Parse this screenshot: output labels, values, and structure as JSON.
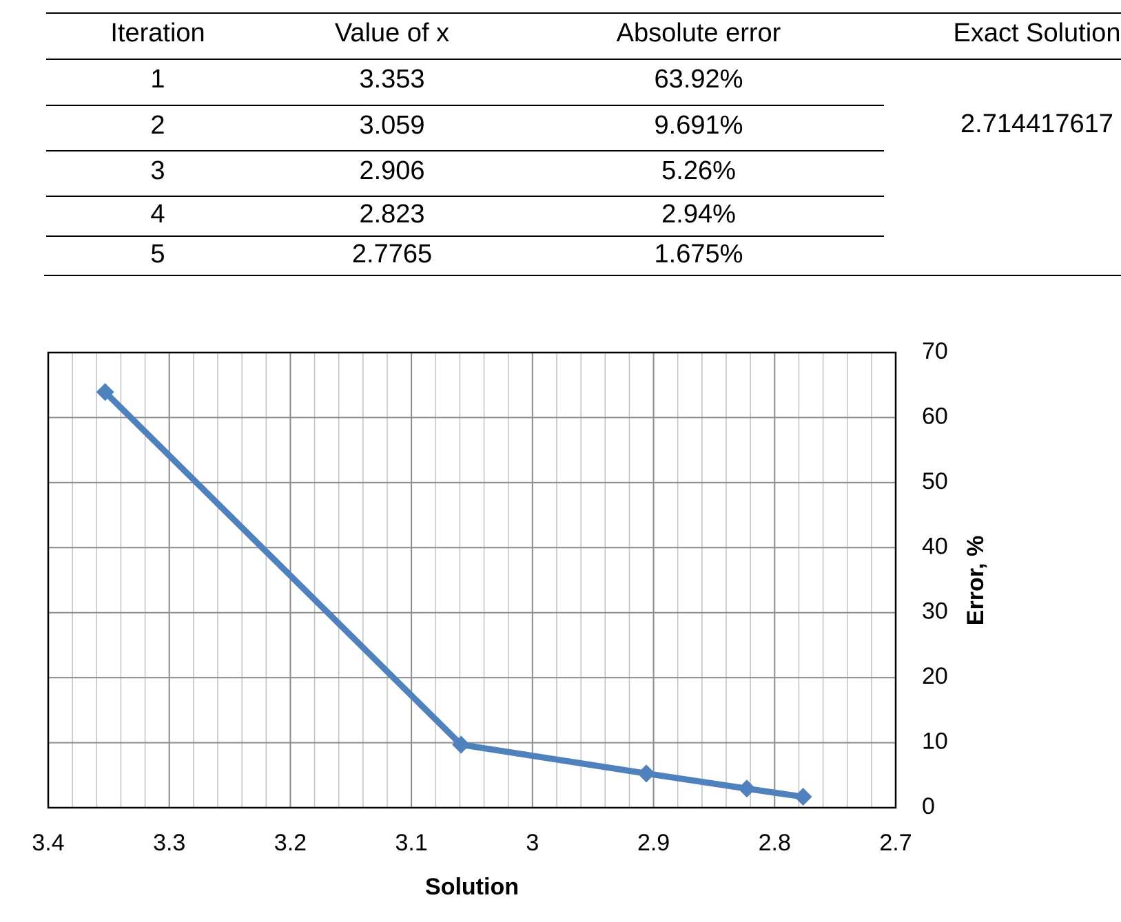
{
  "table": {
    "header": [
      "Iteration",
      "Value of x",
      "Absolute error",
      "Exact Solution"
    ],
    "rows": [
      [
        "1",
        "3.353",
        "63.92%"
      ],
      [
        "2",
        "3.059",
        "9.691%"
      ],
      [
        "3",
        "2.906",
        "5.26%"
      ],
      [
        "4",
        "2.823",
        "2.94%"
      ],
      [
        "5",
        "2.7765",
        "1.675%"
      ]
    ],
    "exact_solution": "2.714417617"
  },
  "chart_data": {
    "type": "line",
    "x_label": "Solution",
    "y_label": "Error, %",
    "x": [
      3.353,
      3.059,
      2.906,
      2.823,
      2.7765
    ],
    "series": [
      {
        "name": "Error",
        "color": "#4f81bd",
        "values": [
          63.92,
          9.691,
          5.26,
          2.94,
          1.675
        ]
      }
    ],
    "xlim": [
      3.4,
      2.7
    ],
    "xticks": [
      3.4,
      3.3,
      3.2,
      3.1,
      3,
      2.9,
      2.8,
      2.7
    ],
    "ylim": [
      0,
      70
    ],
    "yticks": [
      0,
      10,
      20,
      30,
      40,
      50,
      60,
      70
    ],
    "y_axis_side": "right",
    "grid": true,
    "minor_grid": true,
    "marker": "diamond"
  }
}
